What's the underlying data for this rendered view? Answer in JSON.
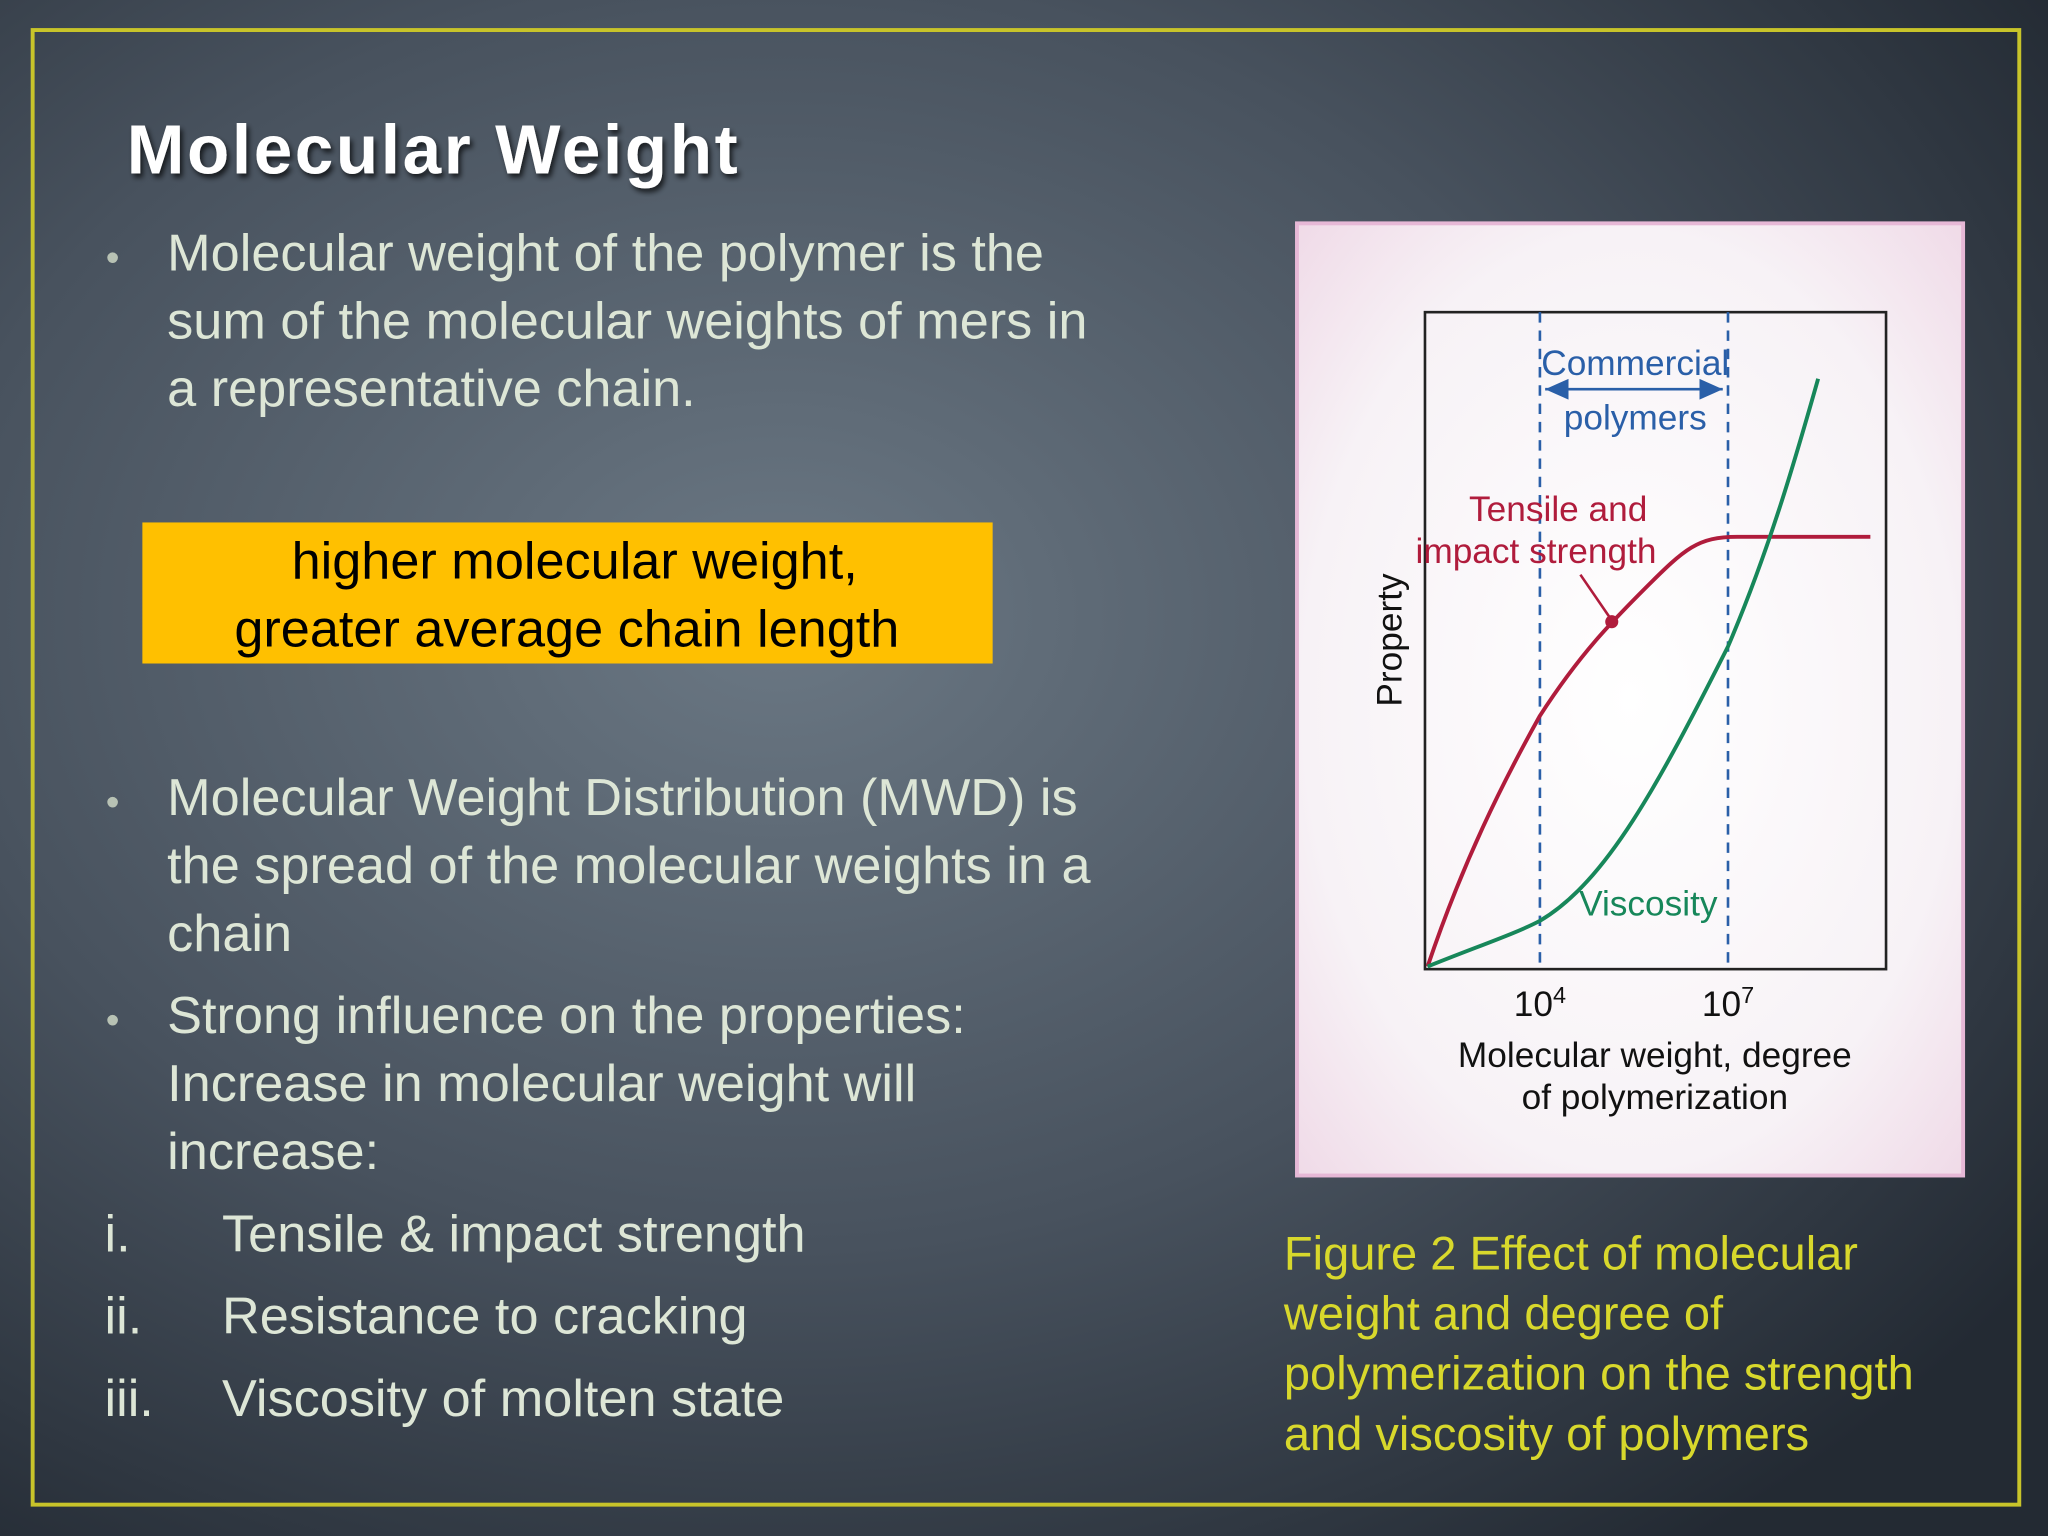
{
  "title": "Molecular Weight",
  "bullets": [
    {
      "marker": "•",
      "lines": [
        "Molecular weight of the polymer is the",
        "sum of the molecular weights of mers in",
        "a representative chain."
      ]
    },
    {
      "marker": "•",
      "lines": [
        "Molecular Weight Distribution (MWD) is",
        "the spread of the molecular weights in a",
        "chain"
      ]
    },
    {
      "marker": "•",
      "lines": [
        "Strong influence on the properties:",
        "Increase in molecular weight will",
        "increase:"
      ]
    }
  ],
  "highlight": {
    "lines": [
      "higher molecular weight,",
      "greater average chain length"
    ]
  },
  "list": [
    {
      "marker": "i.",
      "text": "Tensile & impact strength"
    },
    {
      "marker": "ii.",
      "text": "Resistance to cracking"
    },
    {
      "marker": "iii.",
      "text": "Viscosity of molten state"
    }
  ],
  "figure": {
    "y_label": "Property",
    "x_label": [
      "Molecular weight, degree",
      "of polymerization"
    ],
    "ticks": [
      {
        "base": "10",
        "exp": "4"
      },
      {
        "base": "10",
        "exp": "7"
      }
    ],
    "region_label": [
      "Commercial",
      "polymers"
    ],
    "curve_labels": {
      "strength": [
        "Tensile and",
        "impact strength"
      ],
      "viscosity": "Viscosity"
    }
  },
  "caption": [
    "Figure 2 Effect of molecular",
    "weight and degree of",
    "polymerization on the strength",
    "and viscosity of polymers"
  ]
}
